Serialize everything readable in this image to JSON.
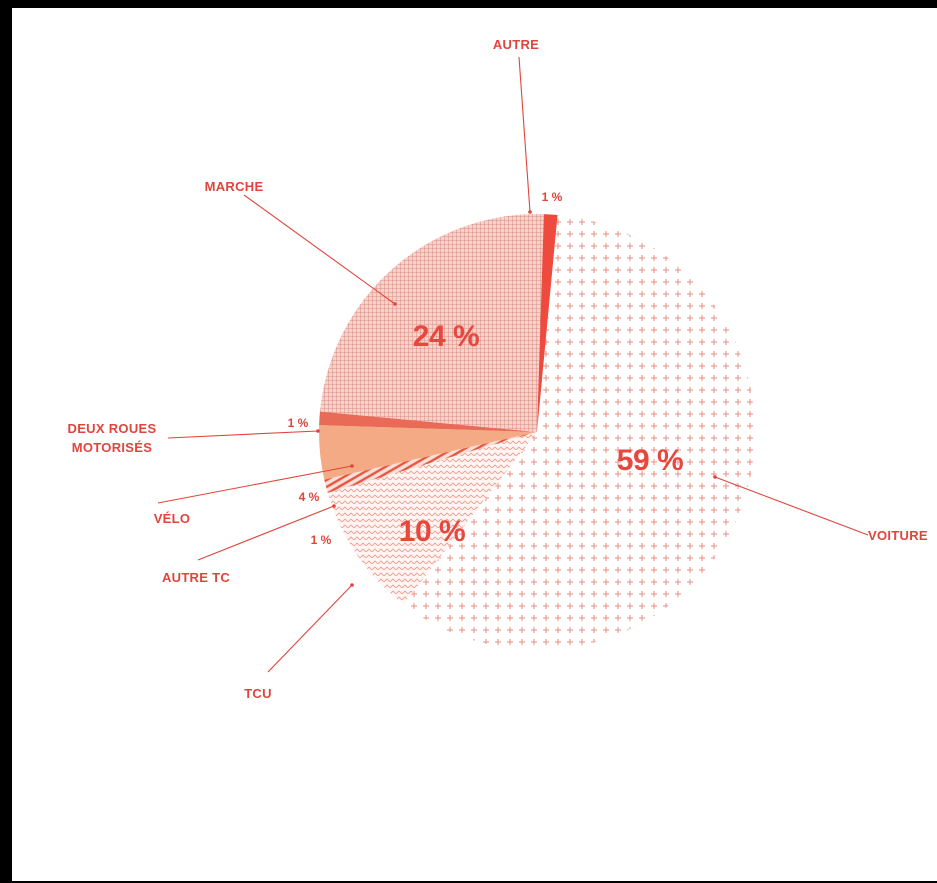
{
  "chart_data": {
    "type": "pie",
    "title": "",
    "colors": {
      "accent": "#e8473d",
      "voiture": "#f3b0a8",
      "tcu": "#eeb5ab",
      "autre_tc": "#e6563e",
      "velo": "#f5aa86",
      "deux_roues": "#e96a56",
      "marche": "#d99488",
      "autre": "#ef4a3e"
    },
    "slices": [
      {
        "key": "voiture",
        "label": "VOITURE",
        "label2": "",
        "value": 59,
        "pct_text": "59 %"
      },
      {
        "key": "tcu",
        "label": "TCU",
        "label2": "",
        "value": 10,
        "pct_text": "10 %"
      },
      {
        "key": "autre_tc",
        "label": "AUTRE TC",
        "label2": "",
        "value": 1,
        "pct_text": "1 %"
      },
      {
        "key": "velo",
        "label": "VÉLO",
        "label2": "",
        "value": 4,
        "pct_text": "4 %"
      },
      {
        "key": "deux_roues",
        "label": "DEUX ROUES",
        "label2": "MOTORISÉS",
        "value": 1,
        "pct_text": "1 %"
      },
      {
        "key": "marche",
        "label": "MARCHE",
        "label2": "",
        "value": 24,
        "pct_text": "24 %"
      },
      {
        "key": "autre",
        "label": "AUTRE",
        "label2": "",
        "value": 1,
        "pct_text": "1 %"
      }
    ]
  }
}
